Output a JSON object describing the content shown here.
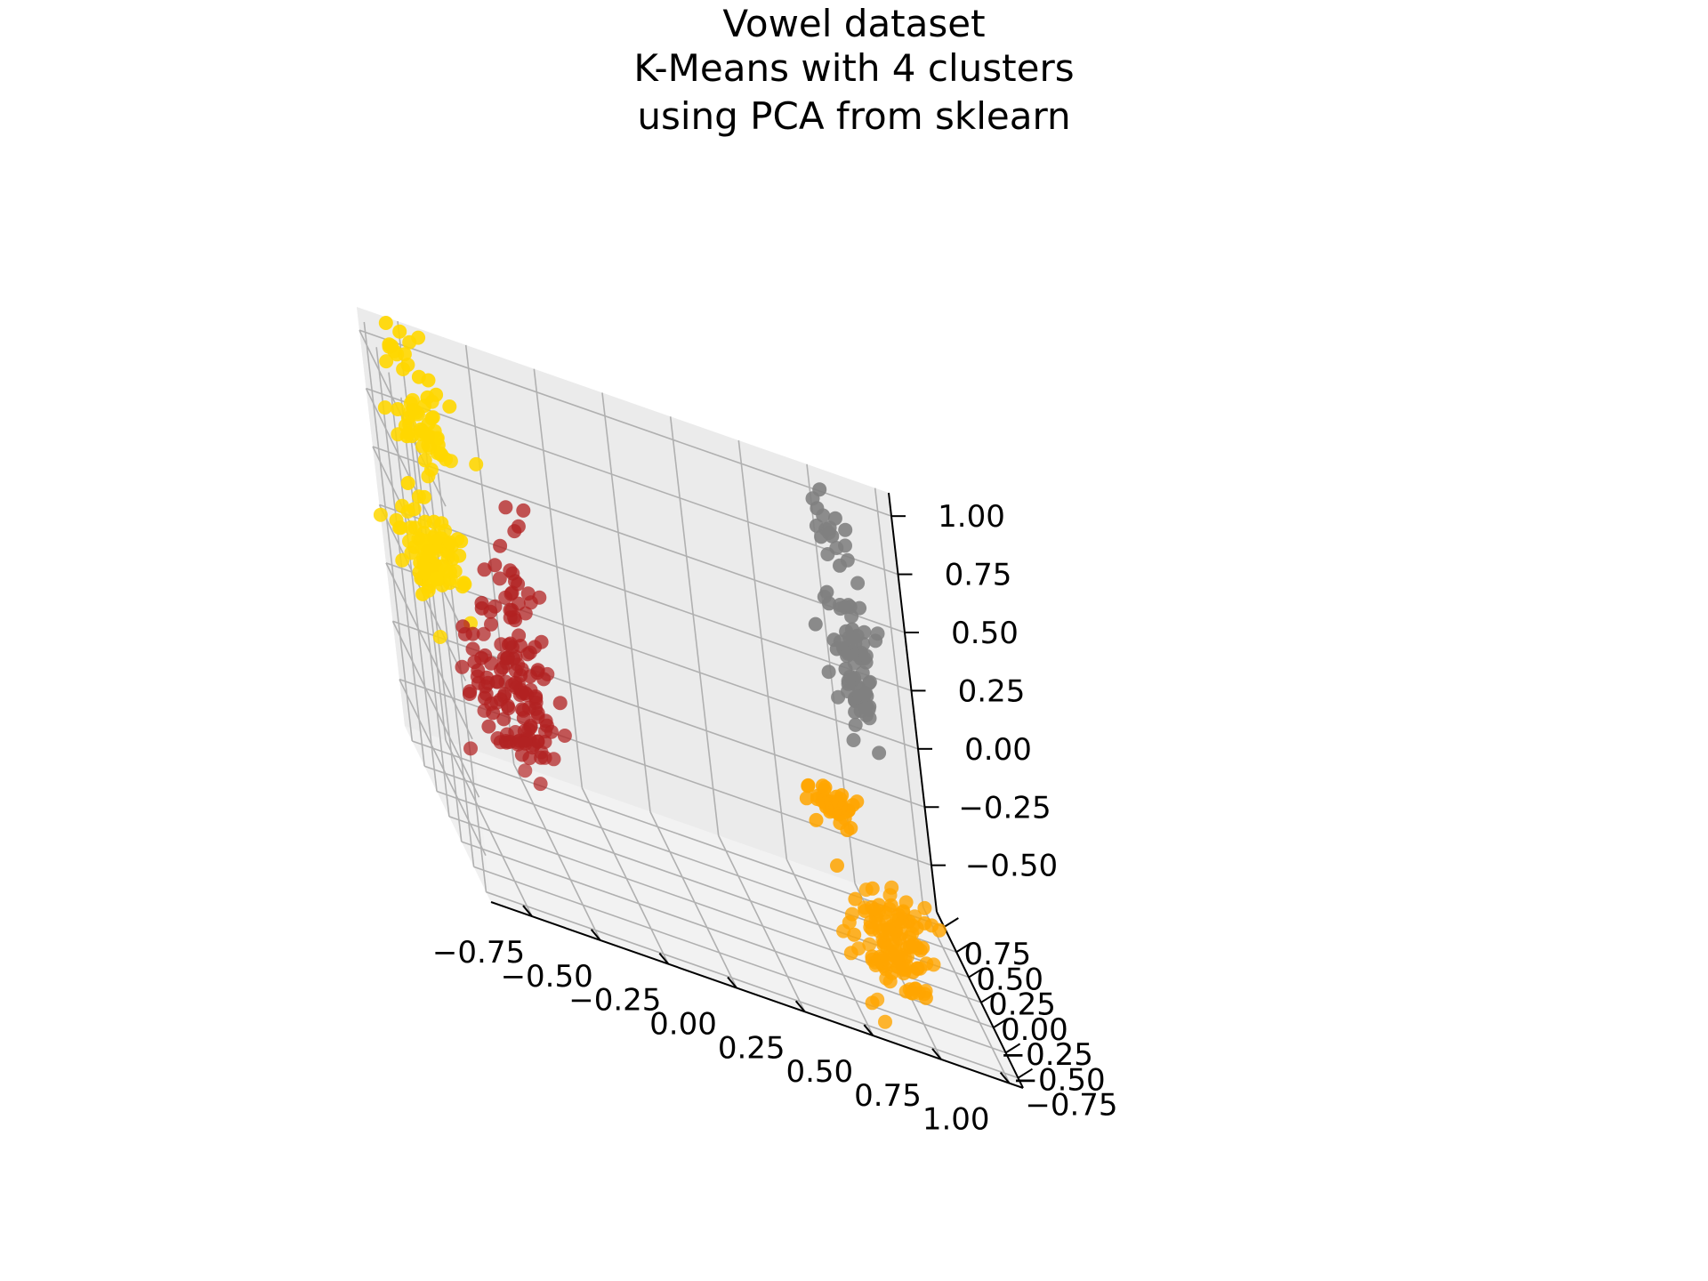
{
  "chart_data": {
    "type": "scatter",
    "projection": "3d",
    "title_lines": [
      "Vowel dataset",
      "K-Means with 4 clusters",
      "using PCA from sklearn"
    ],
    "xlabel": "",
    "ylabel": "",
    "zlabel": "",
    "grid": true,
    "legend": "none",
    "x_ticks": [
      "−0.75",
      "−0.50",
      "−0.25",
      "0.00",
      "0.25",
      "0.50",
      "0.75",
      "1.00"
    ],
    "y_ticks": [
      "−0.75",
      "−0.50",
      "−0.25",
      "0.00",
      "0.25",
      "0.50",
      "0.75"
    ],
    "z_ticks": [
      "−0.50",
      "−0.25",
      "0.00",
      "0.25",
      "0.50",
      "0.75",
      "1.00"
    ],
    "xlim": [
      -0.9,
      1.05
    ],
    "ylim": [
      -0.85,
      0.9
    ],
    "zlim": [
      -0.7,
      1.1
    ],
    "series": [
      {
        "color": "#b22222",
        "clusters": [
          {
            "x": -0.6,
            "y": 0.05,
            "z": -0.1,
            "sx": 0.09,
            "sy": 0.12,
            "sz": 0.14,
            "n": 110
          },
          {
            "x": -0.55,
            "y": 0.05,
            "z": 0.3,
            "sx": 0.05,
            "sy": 0.06,
            "sz": 0.16,
            "n": 40
          }
        ]
      },
      {
        "color": "#ffd700",
        "clusters": [
          {
            "x": -0.75,
            "y": 0.65,
            "z": 0.2,
            "sx": 0.06,
            "sy": 0.08,
            "sz": 0.1,
            "n": 80
          },
          {
            "x": -0.75,
            "y": 0.65,
            "z": 0.75,
            "sx": 0.06,
            "sy": 0.08,
            "sz": 0.12,
            "n": 50
          },
          {
            "x": -0.8,
            "y": 0.7,
            "z": 1.05,
            "sx": 0.04,
            "sy": 0.05,
            "sz": 0.05,
            "n": 12
          }
        ]
      },
      {
        "color": "#808080",
        "clusters": [
          {
            "x": 0.8,
            "y": 0.65,
            "z": 0.4,
            "sx": 0.04,
            "sy": 0.06,
            "sz": 0.16,
            "n": 75
          },
          {
            "x": 0.75,
            "y": 0.65,
            "z": 0.95,
            "sx": 0.04,
            "sy": 0.05,
            "sz": 0.06,
            "n": 15
          }
        ]
      },
      {
        "color": "#ffa500",
        "clusters": [
          {
            "x": 0.65,
            "y": 0.5,
            "z": -0.25,
            "sx": 0.05,
            "sy": 0.06,
            "sz": 0.05,
            "n": 40
          },
          {
            "x": 0.78,
            "y": 0.3,
            "z": -0.7,
            "sx": 0.08,
            "sy": 0.1,
            "sz": 0.12,
            "n": 120
          }
        ]
      }
    ]
  }
}
